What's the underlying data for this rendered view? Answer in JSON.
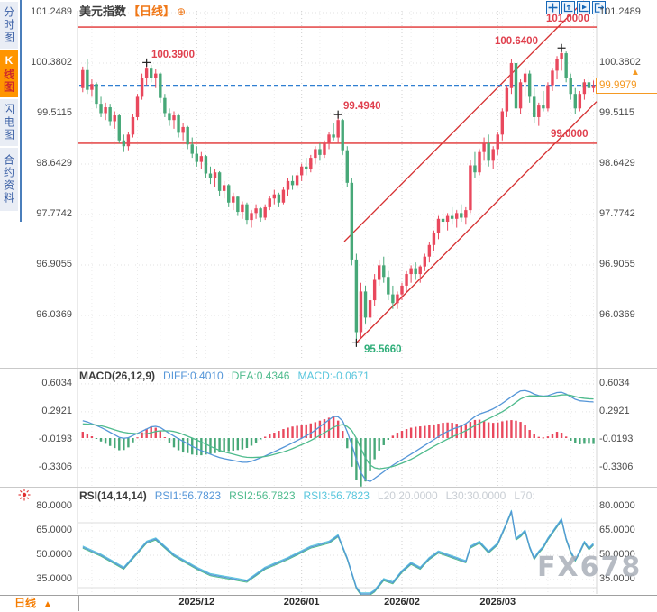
{
  "app": {
    "title_symbol": "美元指数",
    "title_period": "【日线】",
    "title_icon": "⊕"
  },
  "sidebar": {
    "tabs": [
      {
        "label": "分时图",
        "active": false
      },
      {
        "label": "K线图",
        "label_head": "K",
        "label_tail": "线图",
        "active": true
      },
      {
        "label": "闪电图",
        "active": false
      },
      {
        "label": "合约资料",
        "active": false
      }
    ]
  },
  "toolbar": {
    "icons": [
      "crosshair-icon",
      "chart-up-icon",
      "chart-play-icon",
      "exit-icon"
    ]
  },
  "colors": {
    "up": "#e9485d",
    "down": "#47a878",
    "accent_orange": "#f59a23",
    "level_red": "#e03131",
    "channel_red": "#d63031",
    "dashed_blue": "#2f7fd1",
    "diff_blue": "#5596d8",
    "dea_green": "#4fbb8d",
    "macd_cyan": "#58c6dd",
    "grid": "#e2e2e2",
    "grid_month": "#d0d0d0",
    "grey_label": "#c9ced4"
  },
  "main_chart": {
    "last_price_label": "99.9979",
    "hline_labels": [
      {
        "label": "101.0000"
      },
      {
        "label": "99.0000"
      }
    ]
  },
  "macd_header": {
    "name": "MACD(26,12,9)",
    "diff": "DIFF:0.4010",
    "dea": "DEA:0.4346",
    "macd": "MACD:-0.0671"
  },
  "rsi_header": {
    "name": "RSI(14,14,14)",
    "rsi1": "RSI1:56.7823",
    "rsi2": "RSI2:56.7823",
    "rsi3": "RSI3:56.7823",
    "l20": "L20:20.0000",
    "l30": "L30:30.0000",
    "l70": "L70:"
  },
  "bottom": {
    "tab_label": "日线",
    "tab_arrow": "▲",
    "watermark": "FX678"
  },
  "chart_data": [
    {
      "type": "candlestick",
      "title": "美元指数 日线",
      "x_axis": {
        "labels": [
          "2025/12",
          "2026/01",
          "2026/02",
          "2026/03"
        ],
        "label_indices": [
          25,
          48,
          70,
          91
        ]
      },
      "y_axis": {
        "ticks": [
          101.2489,
          100.3802,
          99.5115,
          98.6429,
          97.7742,
          96.9055,
          96.0369
        ]
      },
      "hlines": [
        101.0,
        99.0
      ],
      "last_price": 99.9979,
      "channel": {
        "lower_start_index": 60,
        "note": "ascending red parallel trend channel"
      },
      "marked_points": [
        {
          "index": 14,
          "price": 100.39,
          "label": "100.3900",
          "anchor": "right"
        },
        {
          "index": 56,
          "price": 99.494,
          "label": "99.4940",
          "anchor": "right"
        },
        {
          "index": 60,
          "price": 95.566,
          "label": "95.5660",
          "anchor": "below"
        },
        {
          "index": 105,
          "price": 100.64,
          "label": "100.6400",
          "anchor": "left"
        }
      ],
      "candles": [
        [
          99.95,
          100.32,
          99.88,
          100.26
        ],
        [
          100.26,
          100.45,
          99.85,
          99.92
        ],
        [
          99.92,
          100.1,
          99.8,
          100.02
        ],
        [
          100.02,
          100.05,
          99.6,
          99.68
        ],
        [
          99.68,
          99.8,
          99.45,
          99.52
        ],
        [
          99.52,
          99.7,
          99.4,
          99.62
        ],
        [
          99.62,
          99.68,
          99.3,
          99.38
        ],
        [
          99.38,
          99.55,
          99.25,
          99.48
        ],
        [
          99.48,
          99.5,
          99.0,
          99.05
        ],
        [
          99.05,
          99.15,
          98.85,
          98.95
        ],
        [
          98.95,
          99.2,
          98.88,
          99.15
        ],
        [
          99.15,
          99.5,
          99.1,
          99.45
        ],
        [
          99.45,
          99.85,
          99.4,
          99.8
        ],
        [
          99.8,
          100.2,
          99.75,
          100.12
        ],
        [
          100.12,
          100.39,
          100.0,
          100.3
        ],
        [
          100.3,
          100.35,
          100.05,
          100.12
        ],
        [
          100.12,
          100.28,
          99.95,
          100.2
        ],
        [
          100.2,
          100.22,
          99.7,
          99.78
        ],
        [
          99.78,
          99.85,
          99.45,
          99.52
        ],
        [
          99.52,
          99.6,
          99.3,
          99.4
        ],
        [
          99.4,
          99.55,
          99.25,
          99.48
        ],
        [
          99.48,
          99.5,
          99.1,
          99.18
        ],
        [
          99.18,
          99.35,
          99.05,
          99.28
        ],
        [
          99.28,
          99.3,
          98.9,
          98.98
        ],
        [
          98.98,
          99.1,
          98.75,
          98.82
        ],
        [
          98.82,
          98.95,
          98.6,
          98.68
        ],
        [
          98.68,
          98.85,
          98.55,
          98.78
        ],
        [
          98.78,
          98.8,
          98.4,
          98.48
        ],
        [
          98.48,
          98.6,
          98.3,
          98.4
        ],
        [
          98.4,
          98.55,
          98.25,
          98.5
        ],
        [
          98.5,
          98.52,
          98.1,
          98.18
        ],
        [
          98.18,
          98.35,
          98.05,
          98.28
        ],
        [
          98.28,
          98.3,
          97.9,
          97.98
        ],
        [
          97.98,
          98.15,
          97.85,
          98.08
        ],
        [
          98.08,
          98.1,
          97.75,
          97.82
        ],
        [
          97.82,
          98.0,
          97.7,
          97.95
        ],
        [
          97.95,
          97.98,
          97.6,
          97.68
        ],
        [
          97.68,
          97.85,
          97.55,
          97.8
        ],
        [
          97.8,
          97.95,
          97.7,
          97.88
        ],
        [
          97.88,
          97.9,
          97.65,
          97.72
        ],
        [
          97.72,
          97.95,
          97.68,
          97.9
        ],
        [
          97.9,
          98.1,
          97.85,
          98.05
        ],
        [
          98.05,
          98.2,
          97.95,
          98.12
        ],
        [
          98.12,
          98.15,
          97.9,
          97.98
        ],
        [
          97.98,
          98.25,
          97.95,
          98.2
        ],
        [
          98.2,
          98.4,
          98.1,
          98.35
        ],
        [
          98.35,
          98.45,
          98.2,
          98.28
        ],
        [
          98.28,
          98.5,
          98.22,
          98.45
        ],
        [
          98.45,
          98.65,
          98.35,
          98.6
        ],
        [
          98.6,
          98.75,
          98.45,
          98.55
        ],
        [
          98.55,
          98.8,
          98.5,
          98.75
        ],
        [
          98.75,
          98.95,
          98.65,
          98.9
        ],
        [
          98.9,
          99.0,
          98.7,
          98.8
        ],
        [
          98.8,
          99.05,
          98.75,
          99.0
        ],
        [
          99.0,
          99.2,
          98.9,
          99.15
        ],
        [
          99.15,
          99.35,
          99.05,
          99.1
        ],
        [
          99.1,
          99.494,
          99.0,
          99.4
        ],
        [
          99.4,
          99.42,
          98.8,
          98.88
        ],
        [
          98.88,
          98.95,
          98.25,
          98.32
        ],
        [
          98.32,
          98.4,
          96.9,
          97.0
        ],
        [
          97.0,
          97.1,
          95.566,
          95.75
        ],
        [
          95.75,
          96.6,
          95.65,
          96.45
        ],
        [
          96.45,
          96.55,
          95.9,
          96.0
        ],
        [
          96.0,
          96.4,
          95.85,
          96.3
        ],
        [
          96.3,
          96.75,
          96.2,
          96.65
        ],
        [
          96.65,
          97.0,
          96.55,
          96.9
        ],
        [
          96.9,
          97.05,
          96.6,
          96.7
        ],
        [
          96.7,
          96.8,
          96.3,
          96.4
        ],
        [
          96.4,
          96.55,
          96.15,
          96.25
        ],
        [
          96.25,
          96.45,
          96.15,
          96.4
        ],
        [
          96.4,
          96.6,
          96.3,
          96.55
        ],
        [
          96.55,
          96.8,
          96.45,
          96.75
        ],
        [
          96.75,
          96.9,
          96.6,
          96.85
        ],
        [
          96.85,
          96.95,
          96.65,
          96.75
        ],
        [
          96.75,
          96.9,
          96.6,
          96.88
        ],
        [
          96.88,
          97.1,
          96.8,
          97.05
        ],
        [
          97.05,
          97.3,
          96.95,
          97.25
        ],
        [
          97.25,
          97.5,
          97.15,
          97.45
        ],
        [
          97.45,
          97.75,
          97.35,
          97.7
        ],
        [
          97.7,
          97.85,
          97.55,
          97.65
        ],
        [
          97.65,
          97.8,
          97.5,
          97.75
        ],
        [
          97.75,
          97.9,
          97.6,
          97.7
        ],
        [
          97.7,
          97.85,
          97.55,
          97.8
        ],
        [
          97.8,
          97.95,
          97.65,
          97.72
        ],
        [
          97.72,
          97.9,
          97.6,
          97.85
        ],
        [
          97.85,
          98.72,
          97.8,
          98.62
        ],
        [
          98.62,
          98.85,
          98.4,
          98.5
        ],
        [
          98.5,
          98.9,
          98.45,
          98.85
        ],
        [
          98.85,
          99.1,
          98.7,
          99.0
        ],
        [
          99.0,
          99.15,
          98.6,
          98.7
        ],
        [
          98.7,
          98.95,
          98.55,
          98.9
        ],
        [
          98.9,
          99.2,
          98.8,
          99.15
        ],
        [
          99.15,
          99.6,
          99.05,
          99.55
        ],
        [
          99.55,
          100.0,
          99.45,
          99.95
        ],
        [
          99.95,
          100.45,
          99.85,
          100.38
        ],
        [
          100.38,
          100.42,
          99.5,
          99.6
        ],
        [
          99.6,
          100.1,
          99.5,
          100.05
        ],
        [
          100.05,
          100.3,
          99.8,
          100.2
        ],
        [
          100.2,
          100.25,
          99.7,
          99.8
        ],
        [
          99.8,
          99.95,
          99.35,
          99.45
        ],
        [
          99.45,
          99.7,
          99.3,
          99.65
        ],
        [
          99.65,
          99.9,
          99.55,
          99.6
        ],
        [
          99.6,
          100.05,
          99.55,
          100.0
        ],
        [
          100.0,
          100.3,
          99.9,
          100.25
        ],
        [
          100.25,
          100.5,
          100.1,
          100.45
        ],
        [
          100.45,
          100.64,
          100.25,
          100.55
        ],
        [
          100.55,
          100.58,
          100.05,
          100.12
        ],
        [
          100.12,
          100.2,
          99.75,
          99.85
        ],
        [
          99.85,
          99.95,
          99.5,
          99.6
        ],
        [
          99.6,
          99.9,
          99.55,
          99.85
        ],
        [
          99.85,
          100.1,
          99.75,
          100.05
        ],
        [
          100.05,
          100.15,
          99.85,
          99.95
        ],
        [
          99.95,
          100.08,
          99.88,
          99.9979
        ]
      ]
    },
    {
      "type": "bar",
      "name": "MACD(26,12,9)",
      "legend": {
        "diff": "DIFF:0.4010",
        "dea": "DEA:0.4346",
        "macd": "MACD:-0.0671"
      },
      "y_ticks": [
        0.6034,
        0.2921,
        -0.0193,
        -0.3306
      ],
      "hist_rule": "2*(diff-dea)",
      "diff_keypoints": [
        [
          0,
          0.2
        ],
        [
          4,
          0.12
        ],
        [
          9,
          -0.02
        ],
        [
          14,
          0.1
        ],
        [
          16,
          0.15
        ],
        [
          20,
          0.02
        ],
        [
          25,
          -0.12
        ],
        [
          30,
          -0.22
        ],
        [
          36,
          -0.28
        ],
        [
          40,
          -0.2
        ],
        [
          45,
          -0.08
        ],
        [
          50,
          0.05
        ],
        [
          56,
          0.28
        ],
        [
          58,
          0.1
        ],
        [
          60,
          -0.25
        ],
        [
          62,
          -0.52
        ],
        [
          64,
          -0.45
        ],
        [
          68,
          -0.3
        ],
        [
          72,
          -0.18
        ],
        [
          76,
          -0.05
        ],
        [
          80,
          0.08
        ],
        [
          84,
          0.15
        ],
        [
          86,
          0.25
        ],
        [
          90,
          0.32
        ],
        [
          93,
          0.42
        ],
        [
          95,
          0.5
        ],
        [
          97,
          0.55
        ],
        [
          99,
          0.48
        ],
        [
          102,
          0.46
        ],
        [
          104,
          0.52
        ],
        [
          106,
          0.5
        ],
        [
          108,
          0.42
        ],
        [
          110,
          0.41
        ],
        [
          112,
          0.401
        ]
      ],
      "dea_keypoints": [
        [
          0,
          0.16
        ],
        [
          4,
          0.14
        ],
        [
          9,
          0.06
        ],
        [
          14,
          0.04
        ],
        [
          16,
          0.08
        ],
        [
          20,
          0.08
        ],
        [
          25,
          -0.02
        ],
        [
          30,
          -0.14
        ],
        [
          36,
          -0.22
        ],
        [
          40,
          -0.21
        ],
        [
          45,
          -0.14
        ],
        [
          50,
          -0.03
        ],
        [
          56,
          0.15
        ],
        [
          58,
          0.15
        ],
        [
          60,
          0.02
        ],
        [
          62,
          -0.25
        ],
        [
          64,
          -0.35
        ],
        [
          68,
          -0.32
        ],
        [
          72,
          -0.24
        ],
        [
          76,
          -0.12
        ],
        [
          80,
          -0.01
        ],
        [
          84,
          0.08
        ],
        [
          86,
          0.14
        ],
        [
          90,
          0.24
        ],
        [
          93,
          0.32
        ],
        [
          95,
          0.4
        ],
        [
          97,
          0.47
        ],
        [
          99,
          0.47
        ],
        [
          102,
          0.46
        ],
        [
          104,
          0.47
        ],
        [
          106,
          0.49
        ],
        [
          108,
          0.46
        ],
        [
          110,
          0.44
        ],
        [
          112,
          0.4346
        ]
      ]
    },
    {
      "type": "line",
      "name": "RSI(14,14,14)",
      "legend": [
        "RSI1:56.7823",
        "RSI2:56.7823",
        "RSI3:56.7823",
        "L20:20.0000",
        "L30:30.0000",
        "L70:"
      ],
      "y_ticks": [
        80.0,
        65.0,
        50.0,
        35.0
      ],
      "levels": [
        70,
        30
      ],
      "rsi_keypoints": [
        [
          0,
          55
        ],
        [
          4,
          50
        ],
        [
          9,
          42
        ],
        [
          14,
          58
        ],
        [
          16,
          60
        ],
        [
          20,
          50
        ],
        [
          25,
          42
        ],
        [
          28,
          38
        ],
        [
          32,
          36
        ],
        [
          36,
          34
        ],
        [
          40,
          42
        ],
        [
          45,
          48
        ],
        [
          50,
          55
        ],
        [
          54,
          58
        ],
        [
          56,
          62
        ],
        [
          58,
          48
        ],
        [
          60,
          30
        ],
        [
          62,
          14
        ],
        [
          64,
          28
        ],
        [
          66,
          35
        ],
        [
          68,
          33
        ],
        [
          70,
          40
        ],
        [
          72,
          45
        ],
        [
          74,
          42
        ],
        [
          76,
          48
        ],
        [
          78,
          52
        ],
        [
          80,
          50
        ],
        [
          82,
          48
        ],
        [
          84,
          46
        ],
        [
          85,
          55
        ],
        [
          87,
          58
        ],
        [
          89,
          52
        ],
        [
          91,
          57
        ],
        [
          93,
          70
        ],
        [
          94,
          77
        ],
        [
          95,
          60
        ],
        [
          96,
          62
        ],
        [
          97,
          65
        ],
        [
          98,
          55
        ],
        [
          99,
          48
        ],
        [
          100,
          52
        ],
        [
          101,
          55
        ],
        [
          102,
          60
        ],
        [
          103,
          64
        ],
        [
          104,
          68
        ],
        [
          105,
          72
        ],
        [
          106,
          60
        ],
        [
          107,
          52
        ],
        [
          108,
          47
        ],
        [
          109,
          52
        ],
        [
          110,
          58
        ],
        [
          111,
          54
        ],
        [
          112,
          56.78
        ]
      ]
    }
  ]
}
